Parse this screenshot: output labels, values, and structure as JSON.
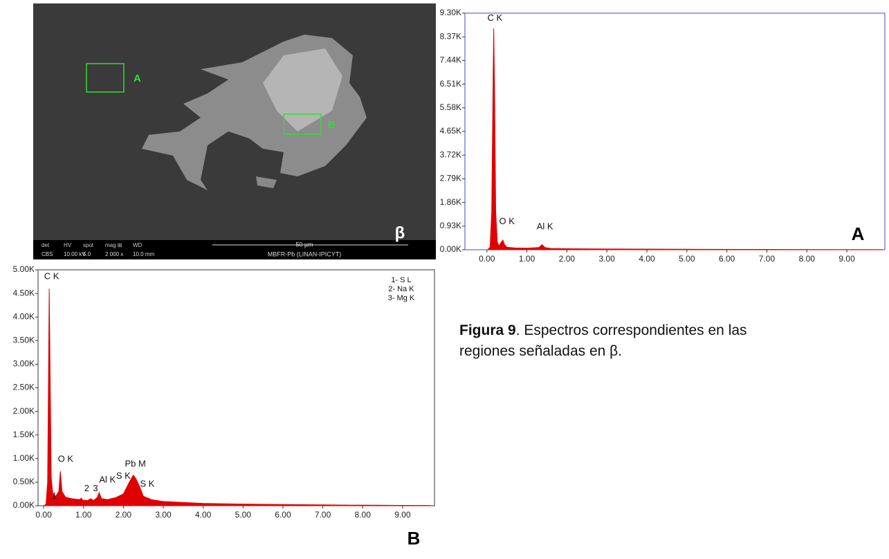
{
  "image": {
    "panel": "β",
    "regions": [
      "A",
      "B"
    ],
    "databar": {
      "header": [
        "det",
        "HV",
        "spot",
        "mag ⊞",
        "WD"
      ],
      "row": [
        "CBS",
        "10.00 kV",
        "5.0",
        "2 000 x",
        "10.0 mm"
      ],
      "scale": "50 µm",
      "sample": "MBFR-Pb   (LINAN-IPICYT)"
    }
  },
  "chart_data": [
    {
      "type": "area",
      "panel": "A",
      "color": "#e00000",
      "x": [
        0.02,
        0.08,
        0.12,
        0.15,
        0.17,
        0.19,
        0.22,
        0.26,
        0.3,
        0.36,
        0.4,
        0.44,
        0.5,
        0.7,
        1.0,
        1.3,
        1.38,
        1.45,
        1.6,
        2.0,
        3.0,
        5.0,
        7.0,
        9.0,
        9.9
      ],
      "values": [
        0,
        100,
        1500,
        6000,
        8700,
        6500,
        1500,
        300,
        150,
        300,
        380,
        200,
        100,
        70,
        60,
        90,
        200,
        90,
        50,
        40,
        30,
        20,
        12,
        8,
        5
      ],
      "annotations": [
        "C K",
        "O K",
        "Al K"
      ],
      "xlim": [
        -0.55,
        9.95
      ],
      "xticks": [
        {
          "value": 0,
          "label": "0.00"
        },
        {
          "value": 1,
          "label": "1.00"
        },
        {
          "value": 2,
          "label": "2.00"
        },
        {
          "value": 3,
          "label": "3.00"
        },
        {
          "value": 4,
          "label": "4.00"
        },
        {
          "value": 5,
          "label": "5.00"
        },
        {
          "value": 6,
          "label": "6.00"
        },
        {
          "value": 7,
          "label": "7.00"
        },
        {
          "value": 8,
          "label": "8.00"
        },
        {
          "value": 9,
          "label": "9.00"
        }
      ],
      "ylim": [
        0,
        9300
      ],
      "yticks": [
        {
          "value": 0,
          "label": "0.00K"
        },
        {
          "value": 930,
          "label": "0.93K"
        },
        {
          "value": 1860,
          "label": "1.86K"
        },
        {
          "value": 2790,
          "label": "2.79K"
        },
        {
          "value": 3720,
          "label": "3.72K"
        },
        {
          "value": 4650,
          "label": "4.65K"
        },
        {
          "value": 5580,
          "label": "5.58K"
        },
        {
          "value": 6510,
          "label": "6.51K"
        },
        {
          "value": 7440,
          "label": "7.44K"
        },
        {
          "value": 8370,
          "label": "8.37K"
        },
        {
          "value": 9300,
          "label": "9.30K"
        }
      ],
      "frame_color": "#4444cc"
    },
    {
      "type": "area",
      "panel": "B",
      "color": "#e00000",
      "x": [
        0.0,
        0.06,
        0.1,
        0.12,
        0.14,
        0.16,
        0.19,
        0.23,
        0.3,
        0.38,
        0.42,
        0.46,
        0.55,
        0.7,
        0.9,
        0.94,
        0.98,
        1.1,
        1.18,
        1.25,
        1.35,
        1.39,
        1.45,
        1.6,
        1.8,
        2.0,
        2.15,
        2.25,
        2.32,
        2.4,
        2.5,
        2.7,
        3.0,
        4.0,
        5.0,
        6.0,
        7.0,
        8.0,
        9.0,
        9.7
      ],
      "values": [
        0,
        30,
        500,
        2500,
        4600,
        3000,
        600,
        250,
        200,
        300,
        730,
        300,
        180,
        150,
        130,
        160,
        120,
        110,
        150,
        110,
        180,
        280,
        150,
        130,
        170,
        250,
        500,
        650,
        560,
        420,
        200,
        130,
        90,
        50,
        35,
        25,
        18,
        12,
        8,
        5
      ],
      "annotations": [
        "C K",
        "O K",
        "Al K",
        "Pb M",
        "S K",
        "S K",
        "1",
        "2",
        "3"
      ],
      "notes": [
        "1- S L",
        "2- Na K",
        "3- Mg K"
      ],
      "xlim": [
        -0.14,
        9.8
      ],
      "xticks": [
        {
          "value": 0,
          "label": "0.00"
        },
        {
          "value": 1,
          "label": "1.00"
        },
        {
          "value": 2,
          "label": "2.00"
        },
        {
          "value": 3,
          "label": "3.00"
        },
        {
          "value": 4,
          "label": "4.00"
        },
        {
          "value": 5,
          "label": "5.00"
        },
        {
          "value": 6,
          "label": "6.00"
        },
        {
          "value": 7,
          "label": "7.00"
        },
        {
          "value": 8,
          "label": "8.00"
        },
        {
          "value": 9,
          "label": "9.00"
        }
      ],
      "ylim": [
        0,
        5000
      ],
      "yticks": [
        {
          "value": 0,
          "label": "0.00K"
        },
        {
          "value": 500,
          "label": "0.50K"
        },
        {
          "value": 1000,
          "label": "1.00K"
        },
        {
          "value": 1500,
          "label": "1.50K"
        },
        {
          "value": 2000,
          "label": "2.00K"
        },
        {
          "value": 2500,
          "label": "2.50K"
        },
        {
          "value": 3000,
          "label": "3.00K"
        },
        {
          "value": 3500,
          "label": "3.50K"
        },
        {
          "value": 4000,
          "label": "4.00K"
        },
        {
          "value": 4500,
          "label": "4.50K"
        },
        {
          "value": 5000,
          "label": "5.00K"
        }
      ],
      "frame_color": "#333333"
    }
  ],
  "caption": {
    "label": "Figura 9",
    "text": ". Espectros correspondientes en las regiones señaladas en β."
  }
}
